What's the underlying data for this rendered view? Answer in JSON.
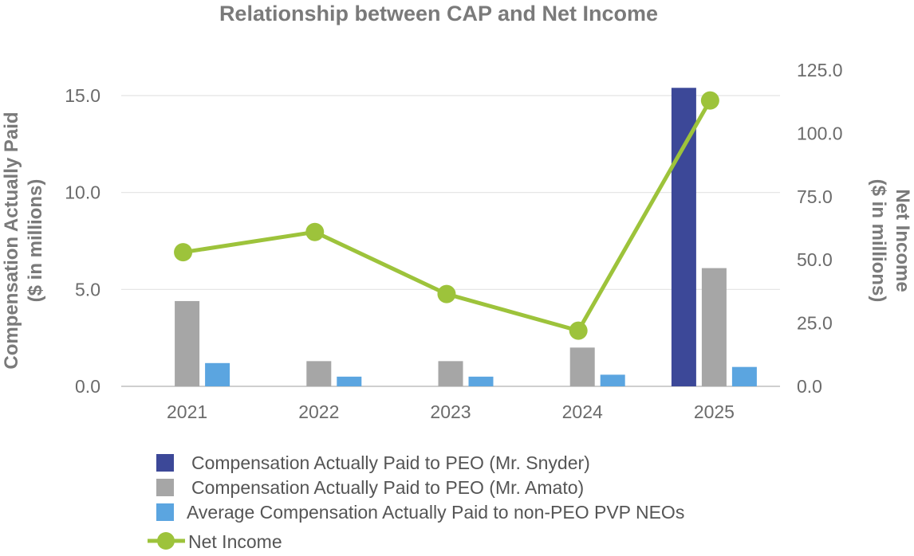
{
  "chart_data": {
    "type": "bar",
    "title": "Relationship between CAP and Net Income",
    "categories": [
      "2021",
      "2022",
      "2023",
      "2024",
      "2025"
    ],
    "ylabel_left": [
      "Compensation Actually Paid",
      "($ in millions)"
    ],
    "ylabel_right": [
      "Net Income",
      "($ in millions)"
    ],
    "ylim_left": [
      0,
      15
    ],
    "ylim_right": [
      0,
      125
    ],
    "yticks_left": [
      "0.0",
      "5.0",
      "10.0",
      "15.0"
    ],
    "yticks_right": [
      "0.0",
      "25.0",
      "50.0",
      "75.0",
      "100.0",
      "125.0"
    ],
    "grid": true,
    "legend_position": "bottom",
    "series": [
      {
        "name": "Compensation Actually Paid to PEO (Mr. Snyder)",
        "type": "bar",
        "axis": "left",
        "color": "#3c4898",
        "values": [
          null,
          null,
          null,
          null,
          15.4
        ]
      },
      {
        "name": "Compensation Actually Paid to PEO (Mr. Amato)",
        "type": "bar",
        "axis": "left",
        "color": "#a6a6a6",
        "values": [
          4.4,
          1.3,
          1.3,
          2.0,
          6.1
        ]
      },
      {
        "name": "Average Compensation Actually Paid to non-PEO PVP NEOs",
        "type": "bar",
        "axis": "left",
        "color": "#5ba5e0",
        "values": [
          1.2,
          0.5,
          0.5,
          0.6,
          1.0
        ]
      },
      {
        "name": "Net Income",
        "type": "line",
        "axis": "right",
        "color": "#9dc33b",
        "values": [
          53,
          61,
          36.5,
          22,
          113
        ]
      }
    ]
  }
}
